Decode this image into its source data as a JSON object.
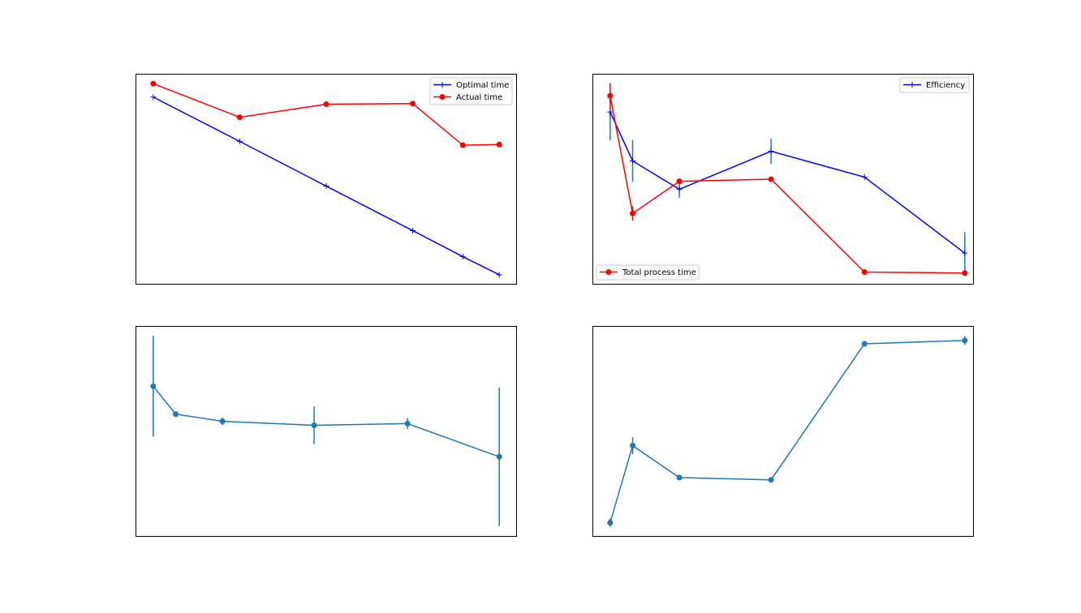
{
  "chart_data": [
    {
      "type": "line",
      "legend_position": "upper-right",
      "grid": false,
      "xlim": [
        -0.5,
        21.5
      ],
      "ylim": [
        0,
        1
      ],
      "series": [
        {
          "name": "Optimal time",
          "color": "#0000ff",
          "marker": "plus",
          "x": [
            0.5,
            5.5,
            10.5,
            15.5,
            18.4,
            20.5
          ],
          "y": [
            0.891,
            0.68,
            0.467,
            0.255,
            0.131,
            0.045
          ]
        },
        {
          "name": "Actual time",
          "color": "#ff0000",
          "marker": "circle",
          "x": [
            0.5,
            5.5,
            10.5,
            15.5,
            18.4,
            20.5
          ],
          "y": [
            0.955,
            0.795,
            0.857,
            0.86,
            0.662,
            0.665
          ]
        }
      ]
    },
    {
      "type": "line",
      "grid": false,
      "xlim": [
        -0.5,
        21.5
      ],
      "ylim": [
        0,
        1
      ],
      "legends": [
        {
          "position": "upper-right",
          "entries": [
            "Efficiency"
          ]
        },
        {
          "position": "lower-left",
          "entries": [
            "Total process time"
          ]
        }
      ],
      "series": [
        {
          "name": "Efficiency",
          "color": "#0000ff",
          "marker": "plus",
          "x": [
            0.5,
            1.8,
            4.5,
            9.8,
            15.2,
            21.0
          ],
          "y": [
            0.82,
            0.587,
            0.452,
            0.633,
            0.51,
            0.148
          ],
          "yerr": [
            0.135,
            0.1,
            0.04,
            0.06,
            0.0,
            0.1
          ],
          "errcolor": "#1f77b4"
        },
        {
          "name": "Total process time",
          "color": "#ff0000",
          "marker": "circle",
          "x": [
            0.5,
            1.8,
            4.5,
            9.8,
            15.2,
            21.0
          ],
          "y": [
            0.897,
            0.337,
            0.49,
            0.5,
            0.058,
            0.053
          ],
          "yerr": [
            0.06,
            0.035,
            0.0,
            0.0,
            0.0,
            0.0
          ],
          "errcolor": "#ff0000"
        }
      ]
    },
    {
      "type": "line",
      "grid": false,
      "xlim": [
        -0.5,
        21.5
      ],
      "ylim": [
        0,
        1
      ],
      "series": [
        {
          "color": "#1f77b4",
          "marker": "circle",
          "x": [
            0.5,
            1.8,
            4.5,
            9.8,
            15.2,
            20.5
          ],
          "y": [
            0.715,
            0.582,
            0.548,
            0.529,
            0.537,
            0.379
          ],
          "yerr": [
            0.24,
            0.0,
            0.018,
            0.09,
            0.025,
            0.33
          ]
        }
      ]
    },
    {
      "type": "line",
      "grid": false,
      "xlim": [
        -0.5,
        21.5
      ],
      "ylim": [
        0,
        1
      ],
      "series": [
        {
          "color": "#1f77b4",
          "marker": "circle",
          "x": [
            0.5,
            1.8,
            4.5,
            9.8,
            15.2,
            21.0
          ],
          "y": [
            0.065,
            0.432,
            0.28,
            0.269,
            0.917,
            0.933
          ],
          "yerr": [
            0.02,
            0.04,
            0.0,
            0.0,
            0.0,
            0.02
          ]
        }
      ]
    }
  ]
}
